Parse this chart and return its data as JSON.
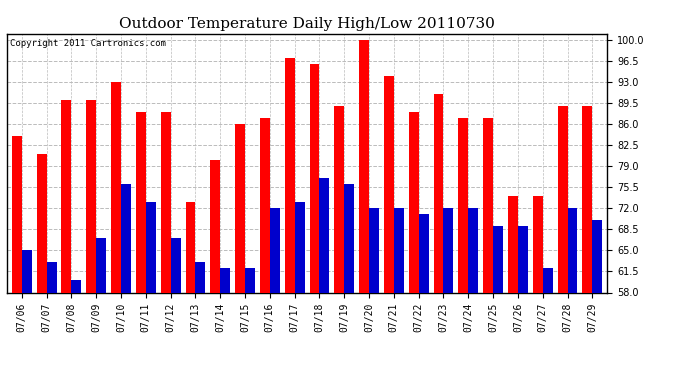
{
  "title": "Outdoor Temperature Daily High/Low 20110730",
  "copyright": "Copyright 2011 Cartronics.com",
  "dates": [
    "07/06",
    "07/07",
    "07/08",
    "07/09",
    "07/10",
    "07/11",
    "07/12",
    "07/13",
    "07/14",
    "07/15",
    "07/16",
    "07/17",
    "07/18",
    "07/19",
    "07/20",
    "07/21",
    "07/22",
    "07/23",
    "07/24",
    "07/25",
    "07/26",
    "07/27",
    "07/28",
    "07/29"
  ],
  "highs": [
    84,
    81,
    90,
    90,
    93,
    88,
    88,
    73,
    80,
    86,
    87,
    97,
    96,
    89,
    100,
    94,
    88,
    91,
    87,
    87,
    74,
    74,
    89,
    89
  ],
  "lows": [
    65,
    63,
    60,
    67,
    76,
    73,
    67,
    63,
    62,
    62,
    72,
    73,
    77,
    76,
    72,
    72,
    71,
    72,
    72,
    69,
    69,
    62,
    72,
    70
  ],
  "high_color": "#ff0000",
  "low_color": "#0000cc",
  "background_color": "#ffffff",
  "plot_background": "#ffffff",
  "grid_color": "#bbbbbb",
  "ylim": [
    58,
    101
  ],
  "yticks": [
    58.0,
    61.5,
    65.0,
    68.5,
    72.0,
    75.5,
    79.0,
    82.5,
    86.0,
    89.5,
    93.0,
    96.5,
    100.0
  ],
  "bar_width": 0.4,
  "title_fontsize": 11,
  "tick_fontsize": 7,
  "copyright_fontsize": 6.5
}
